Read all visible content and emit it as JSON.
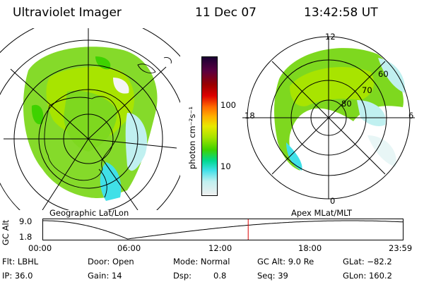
{
  "header": {
    "instrument": "Ultraviolet Imager",
    "date": "11 Dec 07",
    "time": "13:42:58 UT"
  },
  "left_panel": {
    "caption": "Geographic Lat/Lon"
  },
  "right_panel": {
    "caption": "Apex MLat/MLT",
    "mlt_labels": {
      "top": "12",
      "left": "18",
      "right": "6",
      "bottom": "0"
    },
    "lat_labels": [
      "80",
      "70",
      "60"
    ]
  },
  "colorbar": {
    "unit_label": "photon cm⁻²s⁻¹",
    "ticks": [
      "100",
      "10"
    ],
    "colors": [
      "#1a0033",
      "#5a0040",
      "#9a0000",
      "#dd0000",
      "#ff6a00",
      "#ffb000",
      "#e8e800",
      "#a8e400",
      "#3ed200",
      "#00d890",
      "#40e0e8",
      "#c0f0f0",
      "#f0f0f0"
    ]
  },
  "altitude_plot": {
    "ylabel": "GC Alt",
    "yticks": [
      "9.0",
      "1.8"
    ],
    "xticks": [
      "00:00",
      "06:00",
      "12:00",
      "18:00",
      "23:59"
    ],
    "current_time_fraction": 0.571,
    "marker_color": "#dd0000"
  },
  "info": {
    "flt": "Flt: LBHL",
    "ip": "IP: 36.0",
    "door": "Door: Open",
    "gain": "Gain: 14",
    "mode": "Mode: Normal",
    "dsp_label": "Dsp:",
    "dsp_value": "0.8",
    "gcalt": "GC Alt: 9.0 Re",
    "seq": "Seq: 39",
    "glat": "GLat: −82.2",
    "glon": "GLon: 160.2"
  }
}
